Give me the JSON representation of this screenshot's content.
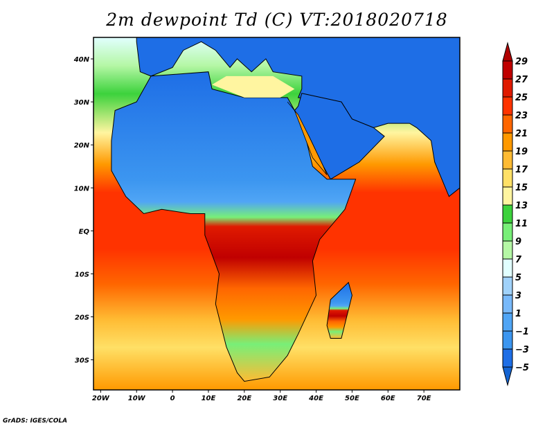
{
  "title": "2m dewpoint Td (C) VT:2018020718",
  "footer": "GrADS: IGES/COLA",
  "chart_data": {
    "type": "heatmap",
    "title": "2m dewpoint Td (C) VT:2018020718",
    "variable": "2m dewpoint Td",
    "units": "C",
    "lon_range": [
      -22,
      80
    ],
    "lat_range": [
      -37,
      45
    ],
    "x_ticks": [
      "20W",
      "10W",
      "0",
      "10E",
      "20E",
      "30E",
      "40E",
      "50E",
      "60E",
      "70E"
    ],
    "x_tick_values": [
      -20,
      -10,
      0,
      10,
      20,
      30,
      40,
      50,
      60,
      70
    ],
    "y_ticks": [
      "40N",
      "30N",
      "20N",
      "10N",
      "EQ",
      "10S",
      "20S",
      "30S"
    ],
    "y_tick_values": [
      40,
      30,
      20,
      10,
      0,
      -10,
      -20,
      -30
    ],
    "colorbar": {
      "labels": [
        "29",
        "27",
        "25",
        "23",
        "21",
        "19",
        "17",
        "15",
        "13",
        "11",
        "9",
        "7",
        "5",
        "3",
        "1",
        "−1",
        "−3",
        "−5"
      ],
      "colors": [
        "#c00000",
        "#e01a00",
        "#ff3300",
        "#ff6600",
        "#ff9900",
        "#ffbb33",
        "#ffe066",
        "#fff5a0",
        "#3cd23c",
        "#78ef78",
        "#b5f7a5",
        "#e1ffff",
        "#a0d2fa",
        "#78b9fa",
        "#50a5f5",
        "#3c96f0",
        "#1e6ee6"
      ],
      "over_color": "#b00000",
      "under_color": "#1464d2"
    }
  }
}
